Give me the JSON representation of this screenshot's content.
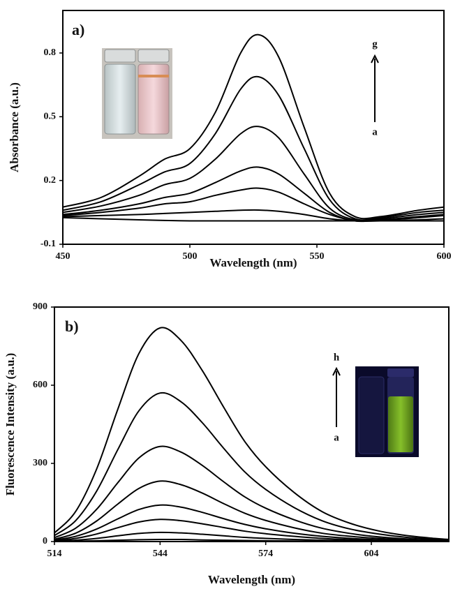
{
  "chart_data": [
    {
      "type": "line",
      "panel_label": "a)",
      "xlabel": "Wavelength (nm)",
      "ylabel": "Absorbance (a.u.)",
      "arrow_top_label": "g",
      "arrow_bottom_label": "a",
      "xlim": [
        450,
        600
      ],
      "xticks": [
        450,
        500,
        550,
        600
      ],
      "ylim": [
        -0.1,
        1.0
      ],
      "yticks": [
        -0.1,
        0.2,
        0.5,
        0.8
      ],
      "x": [
        450,
        465,
        480,
        490,
        500,
        510,
        520,
        527,
        535,
        545,
        555,
        565,
        575,
        590,
        600
      ],
      "series": [
        {
          "color": "#000000",
          "values": [
            0.025,
            0.02,
            0.015,
            0.012,
            0.01,
            0.01,
            0.01,
            0.01,
            0.01,
            0.01,
            0.01,
            0.01,
            0.01,
            0.01,
            0.01
          ]
        },
        {
          "color": "#000000",
          "values": [
            0.03,
            0.035,
            0.04,
            0.045,
            0.05,
            0.055,
            0.06,
            0.061,
            0.055,
            0.04,
            0.02,
            0.01,
            0.01,
            0.015,
            0.02
          ]
        },
        {
          "color": "#000000",
          "values": [
            0.035,
            0.05,
            0.07,
            0.09,
            0.1,
            0.13,
            0.155,
            0.164,
            0.145,
            0.09,
            0.04,
            0.01,
            0.012,
            0.025,
            0.035
          ]
        },
        {
          "color": "#000000",
          "values": [
            0.04,
            0.06,
            0.09,
            0.12,
            0.14,
            0.19,
            0.245,
            0.263,
            0.23,
            0.14,
            0.05,
            0.01,
            0.015,
            0.03,
            0.04
          ]
        },
        {
          "color": "#000000",
          "values": [
            0.05,
            0.08,
            0.13,
            0.18,
            0.21,
            0.3,
            0.42,
            0.454,
            0.4,
            0.23,
            0.07,
            0.015,
            0.02,
            0.04,
            0.05
          ]
        },
        {
          "color": "#000000",
          "values": [
            0.06,
            0.1,
            0.18,
            0.24,
            0.28,
            0.42,
            0.63,
            0.688,
            0.6,
            0.35,
            0.11,
            0.02,
            0.025,
            0.05,
            0.06
          ]
        },
        {
          "color": "#000000",
          "values": [
            0.075,
            0.12,
            0.22,
            0.3,
            0.35,
            0.52,
            0.8,
            0.886,
            0.78,
            0.45,
            0.14,
            0.03,
            0.03,
            0.06,
            0.075
          ]
        }
      ]
    },
    {
      "type": "line",
      "panel_label": "b)",
      "xlabel": "Wavelength (nm)",
      "ylabel": "Fluorescence Intensity (a.u.)",
      "arrow_top_label": "h",
      "arrow_bottom_label": "a",
      "xlim": [
        514,
        626
      ],
      "xticks": [
        514,
        544,
        574,
        604
      ],
      "ylim": [
        0,
        900
      ],
      "yticks": [
        0,
        300,
        600,
        900
      ],
      "x": [
        514,
        520,
        526,
        532,
        538,
        544,
        550,
        556,
        562,
        568,
        574,
        582,
        590,
        598,
        606,
        614,
        622,
        626
      ],
      "series": [
        {
          "color": "#000000",
          "values": [
            0,
            1,
            3,
            5,
            7,
            8,
            8,
            6,
            5,
            4,
            3,
            2,
            1,
            1,
            0,
            0,
            0,
            0
          ]
        },
        {
          "color": "#000000",
          "values": [
            1,
            5,
            12,
            22,
            31,
            35,
            33,
            28,
            22,
            16,
            12,
            8,
            5,
            3,
            2,
            1,
            1,
            0
          ]
        },
        {
          "color": "#000000",
          "values": [
            3,
            12,
            29,
            53,
            75,
            85,
            80,
            68,
            54,
            40,
            30,
            20,
            12,
            7,
            4,
            2,
            1,
            1
          ]
        },
        {
          "color": "#000000",
          "values": [
            6,
            20,
            48,
            87,
            123,
            140,
            132,
            112,
            88,
            66,
            49,
            32,
            20,
            12,
            7,
            4,
            2,
            1
          ]
        },
        {
          "color": "#000000",
          "values": [
            9,
            32,
            79,
            144,
            204,
            232,
            218,
            186,
            146,
            109,
            81,
            53,
            32,
            20,
            12,
            6,
            3,
            2
          ]
        },
        {
          "color": "#000000",
          "values": [
            15,
            51,
            124,
            226,
            321,
            365,
            343,
            292,
            230,
            172,
            128,
            84,
            51,
            31,
            18,
            10,
            5,
            4
          ]
        },
        {
          "color": "#000000",
          "values": [
            23,
            80,
            194,
            353,
            502,
            570,
            536,
            456,
            359,
            268,
            200,
            131,
            80,
            48,
            29,
            16,
            9,
            6
          ]
        },
        {
          "color": "#000000",
          "values": [
            33,
            115,
            279,
            508,
            722,
            820,
            771,
            656,
            517,
            385,
            287,
            189,
            115,
            70,
            41,
            23,
            12,
            8
          ]
        }
      ]
    }
  ]
}
